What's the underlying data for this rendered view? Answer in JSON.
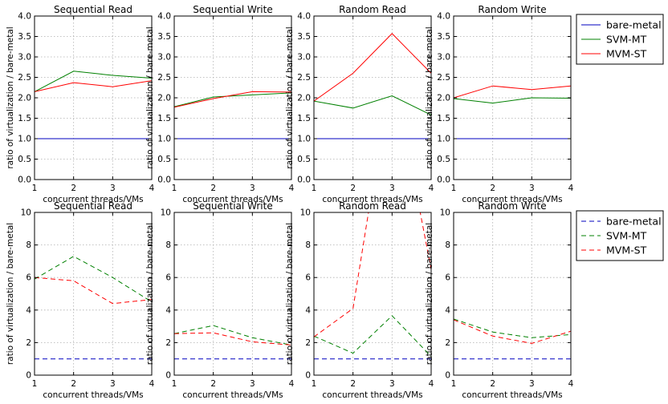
{
  "chart_data": [
    {
      "type": "line",
      "title": "Sequential Read",
      "xlabel": "concurrent threads/VMs",
      "ylabel": "ratio of virtualization / bare-metal",
      "x": [
        1,
        2,
        3,
        4
      ],
      "ylim": [
        0,
        4
      ],
      "yticks": [
        0,
        0.5,
        1,
        1.5,
        2,
        2.5,
        3,
        3.5,
        4
      ],
      "grid": true,
      "linestyle": "solid",
      "series": [
        {
          "name": "bare-metal",
          "values": [
            1,
            1,
            1,
            1
          ],
          "color": "#0000bf"
        },
        {
          "name": "SVM-MT",
          "values": [
            2.15,
            2.65,
            2.55,
            2.48
          ],
          "color": "#008000"
        },
        {
          "name": "MVM-ST",
          "values": [
            2.15,
            2.37,
            2.27,
            2.42
          ],
          "color": "#ff0000"
        }
      ]
    },
    {
      "type": "line",
      "title": "Sequential Write",
      "xlabel": "concurrent threads/VMs",
      "ylabel": "ratio of virtualization / bare-metal",
      "x": [
        1,
        2,
        3,
        4
      ],
      "ylim": [
        0,
        4
      ],
      "yticks": [
        0,
        0.5,
        1,
        1.5,
        2,
        2.5,
        3,
        3.5,
        4
      ],
      "grid": true,
      "linestyle": "solid",
      "series": [
        {
          "name": "bare-metal",
          "values": [
            1,
            1,
            1,
            1
          ],
          "color": "#0000bf"
        },
        {
          "name": "SVM-MT",
          "values": [
            1.78,
            2.02,
            2.07,
            2.12
          ],
          "color": "#008000"
        },
        {
          "name": "MVM-ST",
          "values": [
            1.77,
            1.98,
            2.15,
            2.14
          ],
          "color": "#ff0000"
        }
      ]
    },
    {
      "type": "line",
      "title": "Random Read",
      "xlabel": "concurrent threads/VMs",
      "ylabel": "ratio of virtualization / bare-metal",
      "x": [
        1,
        2,
        3,
        4
      ],
      "ylim": [
        0,
        4
      ],
      "yticks": [
        0,
        0.5,
        1,
        1.5,
        2,
        2.5,
        3,
        3.5,
        4
      ],
      "grid": true,
      "linestyle": "solid",
      "series": [
        {
          "name": "bare-metal",
          "values": [
            1,
            1,
            1,
            1
          ],
          "color": "#0000bf"
        },
        {
          "name": "SVM-MT",
          "values": [
            1.92,
            1.75,
            2.05,
            1.58
          ],
          "color": "#008000"
        },
        {
          "name": "MVM-ST",
          "values": [
            1.92,
            2.6,
            3.57,
            2.6
          ],
          "color": "#ff0000"
        }
      ]
    },
    {
      "type": "line",
      "title": "Random Write",
      "xlabel": "concurrent threads/VMs",
      "ylabel": "ratio of virtualization / bare-metal",
      "x": [
        1,
        2,
        3,
        4
      ],
      "ylim": [
        0,
        4
      ],
      "yticks": [
        0,
        0.5,
        1,
        1.5,
        2,
        2.5,
        3,
        3.5,
        4
      ],
      "grid": true,
      "linestyle": "solid",
      "series": [
        {
          "name": "bare-metal",
          "values": [
            1,
            1,
            1,
            1
          ],
          "color": "#0000bf"
        },
        {
          "name": "SVM-MT",
          "values": [
            1.98,
            1.87,
            2.0,
            1.99
          ],
          "color": "#008000"
        },
        {
          "name": "MVM-ST",
          "values": [
            2.0,
            2.29,
            2.2,
            2.29
          ],
          "color": "#ff0000"
        }
      ]
    },
    {
      "type": "line",
      "title": "Sequential Read",
      "xlabel": "concurrent threads/VMs",
      "ylabel": "ratio of virtualization / bare-metal",
      "x": [
        1,
        2,
        3,
        4
      ],
      "ylim": [
        0,
        10
      ],
      "yticks": [
        0,
        2,
        4,
        6,
        8,
        10
      ],
      "grid": true,
      "linestyle": "dashed",
      "series": [
        {
          "name": "bare-metal",
          "values": [
            1,
            1,
            1,
            1
          ],
          "color": "#0000bf"
        },
        {
          "name": "SVM-MT",
          "values": [
            5.9,
            7.3,
            6.0,
            4.5
          ],
          "color": "#008000"
        },
        {
          "name": "MVM-ST",
          "values": [
            6.0,
            5.8,
            4.4,
            4.65
          ],
          "color": "#ff0000"
        }
      ]
    },
    {
      "type": "line",
      "title": "Sequential Write",
      "xlabel": "concurrent threads/VMs",
      "ylabel": "ratio of virtualization / bare-metal",
      "x": [
        1,
        2,
        3,
        4
      ],
      "ylim": [
        0,
        10
      ],
      "yticks": [
        0,
        2,
        4,
        6,
        8,
        10
      ],
      "grid": true,
      "linestyle": "dashed",
      "series": [
        {
          "name": "bare-metal",
          "values": [
            1,
            1,
            1,
            1
          ],
          "color": "#0000bf"
        },
        {
          "name": "SVM-MT",
          "values": [
            2.55,
            3.05,
            2.3,
            1.85
          ],
          "color": "#008000"
        },
        {
          "name": "MVM-ST",
          "values": [
            2.55,
            2.6,
            2.05,
            1.85
          ],
          "color": "#ff0000"
        }
      ]
    },
    {
      "type": "line",
      "title": "Random Read",
      "xlabel": "concurrent threads/VMs",
      "ylabel": "ratio of virtualization / bare-metal",
      "x": [
        1,
        2,
        3,
        4
      ],
      "ylim": [
        0,
        10
      ],
      "yticks": [
        0,
        2,
        4,
        6,
        8,
        10
      ],
      "grid": true,
      "linestyle": "dashed",
      "series": [
        {
          "name": "bare-metal",
          "values": [
            1,
            1,
            1,
            1
          ],
          "color": "#0000bf"
        },
        {
          "name": "SVM-MT",
          "values": [
            2.4,
            1.35,
            3.65,
            1.15
          ],
          "color": "#008000"
        },
        {
          "name": "MVM-ST",
          "values": [
            2.35,
            4.1,
            19.0,
            6.5
          ],
          "color": "#ff0000"
        }
      ]
    },
    {
      "type": "line",
      "title": "Random Write",
      "xlabel": "concurrent threads/VMs",
      "ylabel": "ratio of virtualization / bare-metal",
      "x": [
        1,
        2,
        3,
        4
      ],
      "ylim": [
        0,
        10
      ],
      "yticks": [
        0,
        2,
        4,
        6,
        8,
        10
      ],
      "grid": true,
      "linestyle": "dashed",
      "series": [
        {
          "name": "bare-metal",
          "values": [
            1,
            1,
            1,
            1
          ],
          "color": "#0000bf"
        },
        {
          "name": "SVM-MT",
          "values": [
            3.45,
            2.65,
            2.3,
            2.5
          ],
          "color": "#008000"
        },
        {
          "name": "MVM-ST",
          "values": [
            3.4,
            2.4,
            1.95,
            2.7
          ],
          "color": "#ff0000"
        }
      ]
    }
  ],
  "legends": [
    {
      "linestyle": "solid",
      "entries": [
        {
          "label": "bare-metal",
          "color": "#0000bf"
        },
        {
          "label": "SVM-MT",
          "color": "#008000"
        },
        {
          "label": "MVM-ST",
          "color": "#ff0000"
        }
      ]
    },
    {
      "linestyle": "dashed",
      "entries": [
        {
          "label": "bare-metal",
          "color": "#0000bf"
        },
        {
          "label": "SVM-MT",
          "color": "#008000"
        },
        {
          "label": "MVM-ST",
          "color": "#ff0000"
        }
      ]
    }
  ]
}
